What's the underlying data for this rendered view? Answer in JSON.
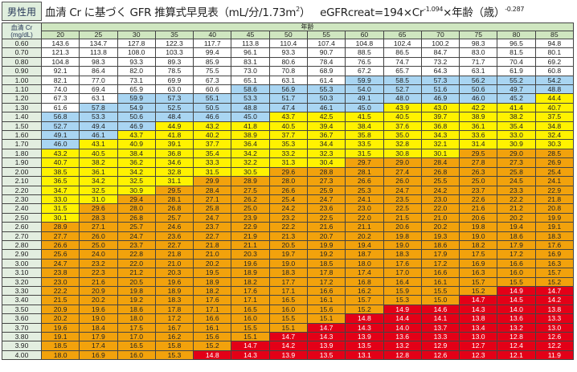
{
  "header": {
    "badge": "男性用",
    "title": "血清 Cr に基づく GFR 推算式早見表（mL/分/1.73m",
    "title_sup": "2",
    "title_close": "）",
    "formula_a": "eGFRcreat=194×Cr",
    "formula_exp1": "-1.094",
    "formula_b": "×年齢（歳）",
    "formula_exp2": "-0.287"
  },
  "table": {
    "row_header": "血清 Cr (mg/dL)",
    "column_group": "年齢",
    "ages": [
      "20",
      "25",
      "30",
      "35",
      "40",
      "45",
      "50",
      "55",
      "60",
      "65",
      "70",
      "75",
      "80",
      "85"
    ],
    "color_bands": {
      "white": ">=60",
      "blue": "45-59.9",
      "yellow": "30-44.9",
      "orange": "15-29.9",
      "red": "<15"
    },
    "colors": {
      "white": "#ffffff",
      "blue": "#a9d5f2",
      "yellow": "#fff200",
      "orange": "#f2a20c",
      "red": "#e30017"
    },
    "rows": [
      {
        "cr": "0.60",
        "v": [
          143.6,
          134.7,
          127.8,
          122.3,
          117.7,
          113.8,
          110.4,
          107.4,
          104.8,
          102.4,
          100.2,
          98.3,
          96.5,
          94.8
        ]
      },
      {
        "cr": "0.70",
        "v": [
          121.3,
          113.8,
          108.0,
          103.3,
          99.4,
          96.1,
          93.3,
          90.7,
          88.5,
          86.5,
          84.7,
          83.0,
          81.5,
          80.1
        ]
      },
      {
        "cr": "0.80",
        "v": [
          104.8,
          98.3,
          93.3,
          89.3,
          85.9,
          83.1,
          80.6,
          78.4,
          76.5,
          74.7,
          73.2,
          71.7,
          70.4,
          69.2
        ]
      },
      {
        "cr": "0.90",
        "v": [
          92.1,
          86.4,
          82.0,
          78.5,
          75.5,
          73.0,
          70.8,
          68.9,
          67.2,
          65.7,
          64.3,
          63.1,
          61.9,
          60.8
        ]
      },
      {
        "cr": "1.00",
        "v": [
          82.1,
          77.0,
          73.1,
          69.9,
          67.3,
          65.1,
          63.1,
          61.4,
          59.9,
          58.5,
          57.3,
          56.2,
          55.2,
          54.2
        ]
      },
      {
        "cr": "1.10",
        "v": [
          74.0,
          69.4,
          65.9,
          63.0,
          60.6,
          58.6,
          56.9,
          55.3,
          54.0,
          52.7,
          51.6,
          50.6,
          49.7,
          48.8
        ]
      },
      {
        "cr": "1.20",
        "v": [
          67.3,
          63.1,
          59.9,
          57.3,
          55.1,
          53.3,
          51.7,
          50.3,
          49.1,
          48.0,
          46.9,
          46.0,
          45.2,
          44.4
        ]
      },
      {
        "cr": "1.30",
        "v": [
          61.6,
          57.8,
          54.9,
          52.5,
          50.5,
          48.8,
          47.4,
          46.1,
          45.0,
          43.9,
          43.0,
          42.2,
          41.4,
          40.7
        ]
      },
      {
        "cr": "1.40",
        "v": [
          56.8,
          53.3,
          50.6,
          48.4,
          46.6,
          45.0,
          43.7,
          42.5,
          41.5,
          40.5,
          39.7,
          38.9,
          38.2,
          37.5
        ]
      },
      {
        "cr": "1.50",
        "v": [
          52.7,
          49.4,
          46.9,
          44.9,
          43.2,
          41.8,
          40.5,
          39.4,
          38.4,
          37.6,
          36.8,
          36.1,
          35.4,
          34.8
        ]
      },
      {
        "cr": "1.60",
        "v": [
          49.1,
          46.1,
          43.7,
          41.8,
          40.2,
          38.9,
          37.7,
          36.7,
          35.8,
          35.0,
          34.3,
          33.6,
          33.0,
          32.4
        ]
      },
      {
        "cr": "1.70",
        "v": [
          46.0,
          43.1,
          40.9,
          39.1,
          37.7,
          36.4,
          35.3,
          34.4,
          33.5,
          32.8,
          32.1,
          31.4,
          30.9,
          30.3
        ]
      },
      {
        "cr": "1.80",
        "v": [
          43.2,
          40.5,
          38.4,
          36.8,
          35.4,
          34.2,
          33.2,
          32.3,
          31.5,
          30.8,
          30.1,
          29.5,
          29.0,
          28.5
        ]
      },
      {
        "cr": "1.90",
        "v": [
          40.7,
          38.2,
          36.2,
          34.6,
          33.3,
          32.2,
          31.3,
          30.4,
          29.7,
          29.0,
          28.4,
          27.8,
          27.3,
          26.9
        ]
      },
      {
        "cr": "2.00",
        "v": [
          38.5,
          36.1,
          34.2,
          32.8,
          31.5,
          30.5,
          29.6,
          28.8,
          28.1,
          27.4,
          26.8,
          26.3,
          25.8,
          25.4
        ]
      },
      {
        "cr": "2.10",
        "v": [
          36.5,
          34.2,
          32.5,
          31.1,
          29.9,
          28.9,
          28.0,
          27.3,
          26.6,
          26.0,
          25.5,
          25.0,
          24.5,
          24.1
        ]
      },
      {
        "cr": "2.20",
        "v": [
          34.7,
          32.5,
          30.9,
          29.5,
          28.4,
          27.5,
          26.6,
          25.9,
          25.3,
          24.7,
          24.2,
          23.7,
          23.3,
          22.9
        ]
      },
      {
        "cr": "2.30",
        "v": [
          33.0,
          31.0,
          29.4,
          28.1,
          27.1,
          26.2,
          25.4,
          24.7,
          24.1,
          23.5,
          23.0,
          22.6,
          22.2,
          21.8
        ]
      },
      {
        "cr": "2.40",
        "v": [
          31.5,
          29.6,
          28.0,
          26.8,
          25.8,
          25.0,
          24.2,
          23.6,
          23.0,
          22.5,
          22.0,
          21.6,
          21.2,
          20.8
        ]
      },
      {
        "cr": "2.50",
        "v": [
          30.1,
          28.3,
          26.8,
          25.7,
          24.7,
          23.9,
          23.2,
          22.5,
          22.0,
          21.5,
          21.0,
          20.6,
          20.2,
          19.9
        ]
      },
      {
        "cr": "2.60",
        "v": [
          28.9,
          27.1,
          25.7,
          24.6,
          23.7,
          22.9,
          22.2,
          21.6,
          21.1,
          20.6,
          20.2,
          19.8,
          19.4,
          19.1
        ]
      },
      {
        "cr": "2.70",
        "v": [
          27.7,
          26.0,
          24.7,
          23.6,
          22.7,
          21.9,
          21.3,
          20.7,
          20.2,
          19.8,
          19.3,
          19.0,
          18.6,
          18.3
        ]
      },
      {
        "cr": "2.80",
        "v": [
          26.6,
          25.0,
          23.7,
          22.7,
          21.8,
          21.1,
          20.5,
          19.9,
          19.4,
          19.0,
          18.6,
          18.2,
          17.9,
          17.6
        ]
      },
      {
        "cr": "2.90",
        "v": [
          25.6,
          24.0,
          22.8,
          21.8,
          21.0,
          20.3,
          19.7,
          19.2,
          18.7,
          18.3,
          17.9,
          17.5,
          17.2,
          16.9
        ]
      },
      {
        "cr": "3.00",
        "v": [
          24.7,
          23.2,
          22.0,
          21.0,
          20.2,
          19.6,
          19.0,
          18.5,
          18.0,
          17.6,
          17.2,
          16.9,
          16.6,
          16.3
        ]
      },
      {
        "cr": "3.10",
        "v": [
          23.8,
          22.3,
          21.2,
          20.3,
          19.5,
          18.9,
          18.3,
          17.8,
          17.4,
          17.0,
          16.6,
          16.3,
          16.0,
          15.7
        ]
      },
      {
        "cr": "3.20",
        "v": [
          23.0,
          21.6,
          20.5,
          19.6,
          18.9,
          18.2,
          17.7,
          17.2,
          16.8,
          16.4,
          16.1,
          15.7,
          15.5,
          15.2
        ]
      },
      {
        "cr": "3.30",
        "v": [
          22.2,
          20.9,
          19.8,
          18.9,
          18.2,
          17.6,
          17.1,
          16.6,
          16.2,
          15.9,
          15.5,
          15.2,
          14.9,
          14.7
        ]
      },
      {
        "cr": "3.40",
        "v": [
          21.5,
          20.2,
          19.2,
          18.3,
          17.6,
          17.1,
          16.5,
          16.1,
          15.7,
          15.3,
          15.0,
          14.7,
          14.5,
          14.2
        ]
      },
      {
        "cr": "3.50",
        "v": [
          20.9,
          19.6,
          18.6,
          17.8,
          17.1,
          16.5,
          16.0,
          15.6,
          15.2,
          14.9,
          14.6,
          14.3,
          14.0,
          13.8
        ]
      },
      {
        "cr": "3.60",
        "v": [
          20.2,
          19.0,
          18.0,
          17.2,
          16.6,
          16.0,
          15.5,
          15.1,
          14.8,
          14.4,
          14.1,
          13.8,
          13.6,
          13.3
        ]
      },
      {
        "cr": "3.70",
        "v": [
          19.6,
          18.4,
          17.5,
          16.7,
          16.1,
          15.5,
          15.1,
          14.7,
          14.3,
          14.0,
          13.7,
          13.4,
          13.2,
          13.0
        ]
      },
      {
        "cr": "3.80",
        "v": [
          19.1,
          17.9,
          17.0,
          16.2,
          15.6,
          15.1,
          14.7,
          14.3,
          13.9,
          13.6,
          13.3,
          13.0,
          12.8,
          12.6
        ]
      },
      {
        "cr": "3.90",
        "v": [
          18.5,
          17.4,
          16.5,
          15.8,
          15.2,
          14.7,
          14.2,
          13.9,
          13.5,
          13.2,
          12.9,
          12.7,
          12.4,
          12.2
        ]
      },
      {
        "cr": "4.00",
        "v": [
          18.0,
          16.9,
          16.0,
          15.3,
          14.8,
          14.3,
          13.9,
          13.5,
          13.1,
          12.8,
          12.6,
          12.3,
          12.1,
          11.9
        ]
      }
    ]
  }
}
